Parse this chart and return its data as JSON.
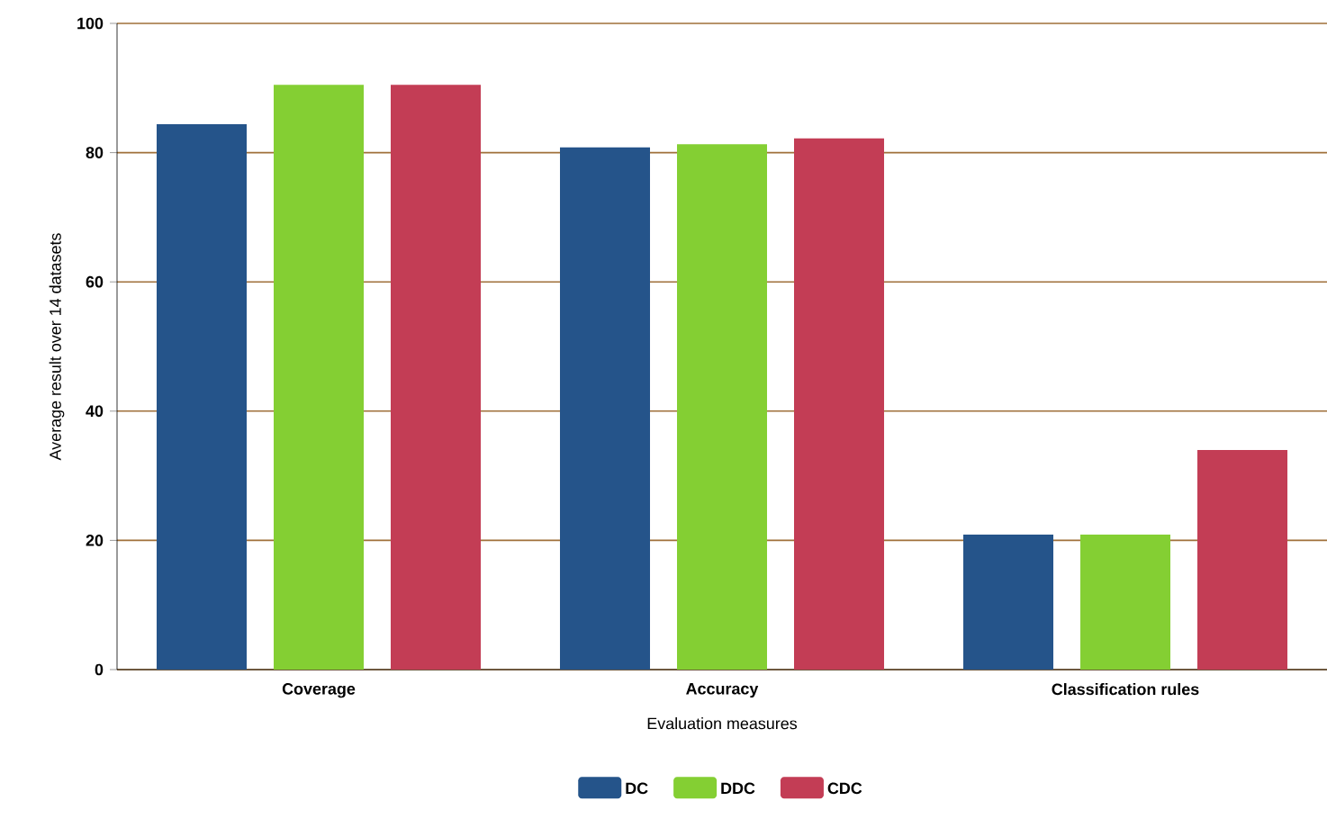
{
  "chart_data": {
    "type": "bar",
    "xlabel": "Evaluation measures",
    "ylabel": "Average result over 14 datasets",
    "categories": [
      "Coverage",
      "Accuracy",
      "Classification rules"
    ],
    "series": [
      {
        "name": "DC",
        "color": "#25548a",
        "values": [
          84.4,
          80.8,
          20.9
        ]
      },
      {
        "name": "DDC",
        "color": "#84cf33",
        "values": [
          90.5,
          81.3,
          20.9
        ]
      },
      {
        "name": "CDC",
        "color": "#c33d55",
        "values": [
          90.5,
          82.2,
          34
        ]
      }
    ],
    "ylim": [
      0,
      100
    ],
    "yticks": [
      0,
      20,
      40,
      60,
      80,
      100
    ],
    "grid": "y",
    "legend": "bottom"
  }
}
